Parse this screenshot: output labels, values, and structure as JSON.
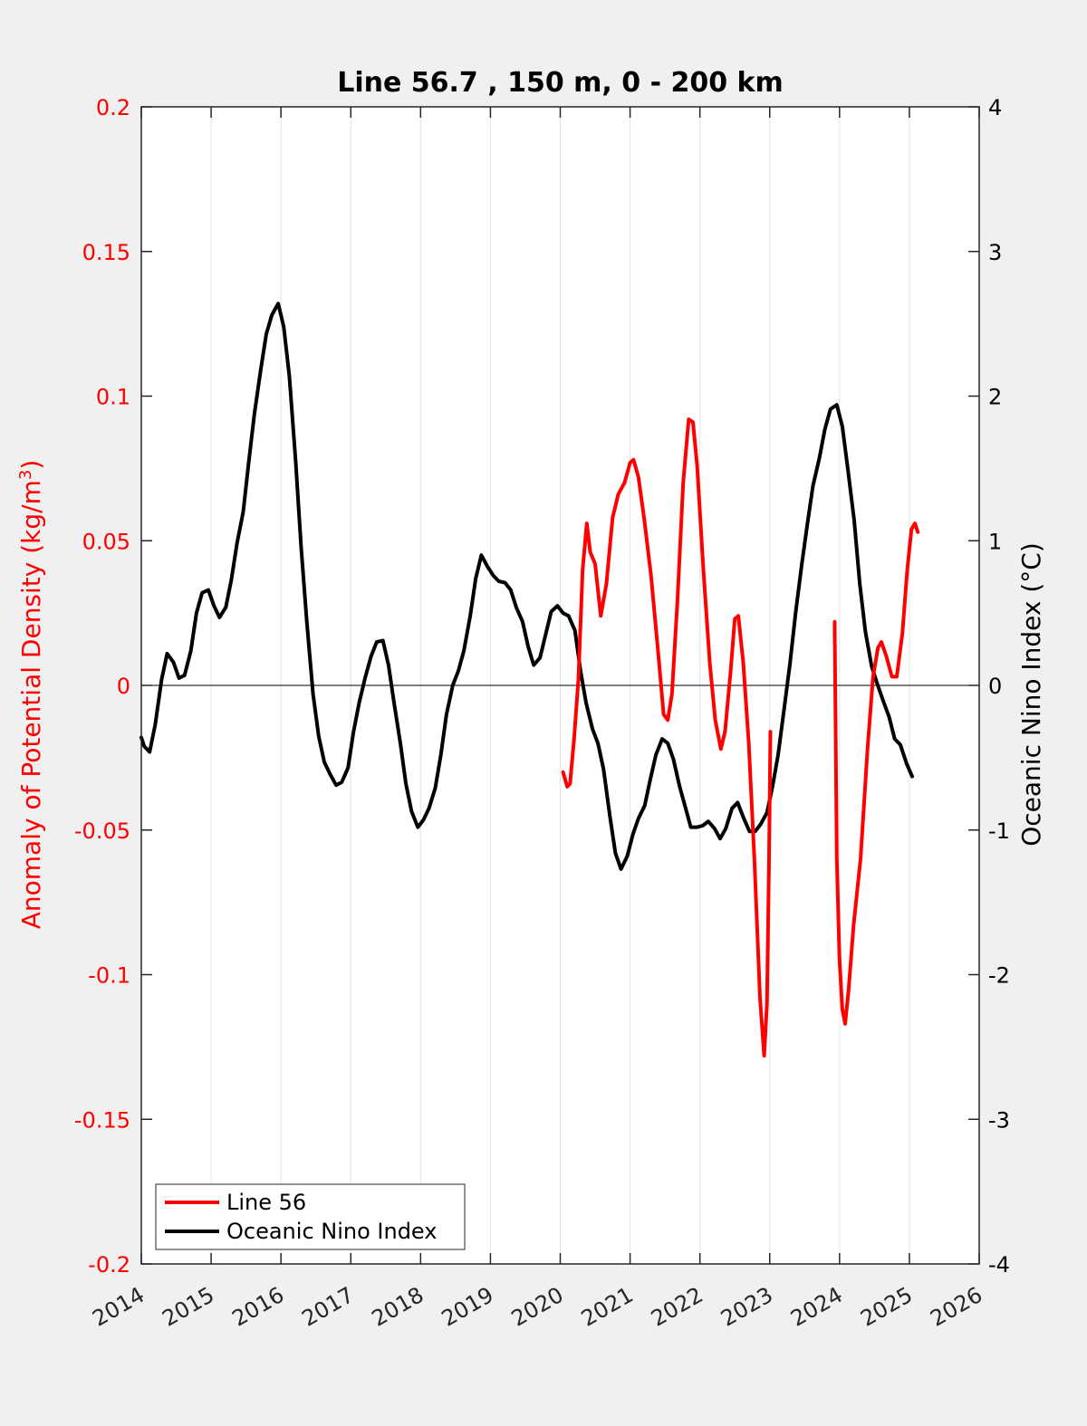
{
  "chart_data": {
    "type": "line",
    "title": "Line 56.7 , 150 m, 0 - 200 km",
    "x_ticks": [
      "2014",
      "2015",
      "2016",
      "2017",
      "2018",
      "2019",
      "2020",
      "2021",
      "2022",
      "2023",
      "2024",
      "2025",
      "2026"
    ],
    "xlim": [
      2014,
      2026
    ],
    "grid": "vertical",
    "legend_position": "bottom-left",
    "y_left": {
      "label_main": "Anomaly of Potential Density (kg/m",
      "label_sup": "3",
      "label_end": ")",
      "lim": [
        -0.2,
        0.2
      ],
      "ticks": [
        "-0.2",
        "-0.15",
        "-0.1",
        "-0.05",
        "0",
        "0.05",
        "0.1",
        "0.15",
        "0.2"
      ],
      "color": "#ff0000"
    },
    "y_right": {
      "label": "Oceanic Nino Index (°C)",
      "lim": [
        -4,
        4
      ],
      "ticks": [
        "-4",
        "-3",
        "-2",
        "-1",
        "0",
        "1",
        "2",
        "3",
        "4"
      ],
      "color": "#000000"
    },
    "series": [
      {
        "name": "Line 56",
        "axis": "left",
        "color": "#ff0000",
        "segments": [
          [
            [
              2020.04,
              -0.03
            ],
            [
              2020.1,
              -0.035
            ],
            [
              2020.14,
              -0.034
            ],
            [
              2020.2,
              -0.018
            ],
            [
              2020.26,
              0.002
            ],
            [
              2020.32,
              0.04
            ],
            [
              2020.38,
              0.056
            ],
            [
              2020.43,
              0.046
            ],
            [
              2020.5,
              0.042
            ],
            [
              2020.58,
              0.024
            ],
            [
              2020.66,
              0.035
            ],
            [
              2020.75,
              0.058
            ],
            [
              2020.83,
              0.066
            ],
            [
              2020.92,
              0.07
            ],
            [
              2021.0,
              0.077
            ],
            [
              2021.05,
              0.078
            ],
            [
              2021.12,
              0.072
            ],
            [
              2021.2,
              0.058
            ],
            [
              2021.3,
              0.038
            ],
            [
              2021.4,
              0.012
            ],
            [
              2021.48,
              -0.01
            ],
            [
              2021.54,
              -0.012
            ],
            [
              2021.6,
              -0.003
            ],
            [
              2021.68,
              0.03
            ],
            [
              2021.76,
              0.07
            ],
            [
              2021.84,
              0.092
            ],
            [
              2021.9,
              0.091
            ],
            [
              2021.96,
              0.076
            ],
            [
              2022.05,
              0.04
            ],
            [
              2022.14,
              0.008
            ],
            [
              2022.22,
              -0.012
            ],
            [
              2022.3,
              -0.022
            ],
            [
              2022.36,
              -0.016
            ],
            [
              2022.44,
              0.005
            ],
            [
              2022.5,
              0.023
            ],
            [
              2022.55,
              0.024
            ],
            [
              2022.62,
              0.008
            ],
            [
              2022.7,
              -0.02
            ],
            [
              2022.78,
              -0.06
            ],
            [
              2022.86,
              -0.108
            ],
            [
              2022.92,
              -0.128
            ],
            [
              2022.96,
              -0.11
            ],
            [
              2022.99,
              -0.06
            ],
            [
              2023.01,
              -0.016
            ]
          ],
          [
            [
              2023.93,
              0.022
            ],
            [
              2023.96,
              -0.06
            ],
            [
              2024.0,
              -0.095
            ],
            [
              2024.04,
              -0.112
            ],
            [
              2024.08,
              -0.117
            ],
            [
              2024.13,
              -0.105
            ],
            [
              2024.2,
              -0.083
            ],
            [
              2024.3,
              -0.06
            ],
            [
              2024.4,
              -0.022
            ],
            [
              2024.48,
              0.003
            ],
            [
              2024.55,
              0.013
            ],
            [
              2024.6,
              0.015
            ],
            [
              2024.67,
              0.01
            ],
            [
              2024.75,
              0.003
            ],
            [
              2024.82,
              0.003
            ],
            [
              2024.9,
              0.018
            ],
            [
              2024.97,
              0.04
            ],
            [
              2025.03,
              0.054
            ],
            [
              2025.08,
              0.056
            ],
            [
              2025.12,
              0.053
            ]
          ]
        ]
      },
      {
        "name": "Oceanic Nino Index",
        "axis": "right",
        "color": "#000000",
        "segments": [
          [
            [
              2014.0,
              -0.36
            ],
            [
              2014.04,
              -0.42
            ],
            [
              2014.12,
              -0.46
            ],
            [
              2014.2,
              -0.27
            ],
            [
              2014.29,
              0.04
            ],
            [
              2014.37,
              0.22
            ],
            [
              2014.46,
              0.16
            ],
            [
              2014.54,
              0.05
            ],
            [
              2014.62,
              0.07
            ],
            [
              2014.71,
              0.24
            ],
            [
              2014.79,
              0.5
            ],
            [
              2014.87,
              0.64
            ],
            [
              2014.96,
              0.66
            ],
            [
              2015.04,
              0.55
            ],
            [
              2015.12,
              0.47
            ],
            [
              2015.21,
              0.54
            ],
            [
              2015.29,
              0.73
            ],
            [
              2015.37,
              0.98
            ],
            [
              2015.46,
              1.2
            ],
            [
              2015.54,
              1.55
            ],
            [
              2015.62,
              1.88
            ],
            [
              2015.71,
              2.18
            ],
            [
              2015.79,
              2.43
            ],
            [
              2015.87,
              2.56
            ],
            [
              2015.96,
              2.64
            ],
            [
              2016.04,
              2.48
            ],
            [
              2016.12,
              2.14
            ],
            [
              2016.21,
              1.55
            ],
            [
              2016.29,
              0.95
            ],
            [
              2016.37,
              0.44
            ],
            [
              2016.46,
              -0.06
            ],
            [
              2016.54,
              -0.35
            ],
            [
              2016.62,
              -0.53
            ],
            [
              2016.71,
              -0.62
            ],
            [
              2016.79,
              -0.69
            ],
            [
              2016.87,
              -0.67
            ],
            [
              2016.96,
              -0.57
            ],
            [
              2017.04,
              -0.32
            ],
            [
              2017.12,
              -0.12
            ],
            [
              2017.21,
              0.06
            ],
            [
              2017.29,
              0.2
            ],
            [
              2017.37,
              0.3
            ],
            [
              2017.46,
              0.31
            ],
            [
              2017.54,
              0.14
            ],
            [
              2017.62,
              -0.12
            ],
            [
              2017.71,
              -0.4
            ],
            [
              2017.79,
              -0.68
            ],
            [
              2017.87,
              -0.87
            ],
            [
              2017.96,
              -0.98
            ],
            [
              2018.04,
              -0.93
            ],
            [
              2018.12,
              -0.85
            ],
            [
              2018.21,
              -0.71
            ],
            [
              2018.29,
              -0.48
            ],
            [
              2018.37,
              -0.2
            ],
            [
              2018.46,
              0.0
            ],
            [
              2018.54,
              0.1
            ],
            [
              2018.62,
              0.24
            ],
            [
              2018.71,
              0.48
            ],
            [
              2018.79,
              0.74
            ],
            [
              2018.87,
              0.9
            ],
            [
              2018.96,
              0.82
            ],
            [
              2019.04,
              0.76
            ],
            [
              2019.12,
              0.72
            ],
            [
              2019.21,
              0.71
            ],
            [
              2019.29,
              0.66
            ],
            [
              2019.37,
              0.54
            ],
            [
              2019.46,
              0.44
            ],
            [
              2019.54,
              0.27
            ],
            [
              2019.62,
              0.14
            ],
            [
              2019.71,
              0.19
            ],
            [
              2019.79,
              0.35
            ],
            [
              2019.87,
              0.51
            ],
            [
              2019.96,
              0.55
            ],
            [
              2020.04,
              0.5
            ],
            [
              2020.12,
              0.48
            ],
            [
              2020.21,
              0.38
            ],
            [
              2020.29,
              0.1
            ],
            [
              2020.37,
              -0.12
            ],
            [
              2020.46,
              -0.3
            ],
            [
              2020.54,
              -0.4
            ],
            [
              2020.62,
              -0.58
            ],
            [
              2020.71,
              -0.9
            ],
            [
              2020.79,
              -1.16
            ],
            [
              2020.87,
              -1.27
            ],
            [
              2020.96,
              -1.18
            ],
            [
              2021.04,
              -1.03
            ],
            [
              2021.12,
              -0.92
            ],
            [
              2021.21,
              -0.83
            ],
            [
              2021.29,
              -0.65
            ],
            [
              2021.37,
              -0.48
            ],
            [
              2021.46,
              -0.37
            ],
            [
              2021.54,
              -0.4
            ],
            [
              2021.62,
              -0.51
            ],
            [
              2021.71,
              -0.7
            ],
            [
              2021.79,
              -0.84
            ],
            [
              2021.87,
              -0.98
            ],
            [
              2021.96,
              -0.98
            ],
            [
              2022.04,
              -0.97
            ],
            [
              2022.12,
              -0.94
            ],
            [
              2022.21,
              -0.99
            ],
            [
              2022.29,
              -1.06
            ],
            [
              2022.37,
              -0.99
            ],
            [
              2022.46,
              -0.85
            ],
            [
              2022.54,
              -0.81
            ],
            [
              2022.62,
              -0.91
            ],
            [
              2022.71,
              -1.01
            ],
            [
              2022.79,
              -1.01
            ],
            [
              2022.87,
              -0.96
            ],
            [
              2022.96,
              -0.88
            ],
            [
              2023.04,
              -0.7
            ],
            [
              2023.12,
              -0.48
            ],
            [
              2023.21,
              -0.15
            ],
            [
              2023.29,
              0.15
            ],
            [
              2023.37,
              0.5
            ],
            [
              2023.46,
              0.84
            ],
            [
              2023.54,
              1.12
            ],
            [
              2023.62,
              1.38
            ],
            [
              2023.71,
              1.57
            ],
            [
              2023.79,
              1.77
            ],
            [
              2023.87,
              1.91
            ],
            [
              2023.96,
              1.94
            ],
            [
              2024.04,
              1.79
            ],
            [
              2024.12,
              1.49
            ],
            [
              2024.21,
              1.14
            ],
            [
              2024.29,
              0.7
            ],
            [
              2024.37,
              0.37
            ],
            [
              2024.46,
              0.13
            ],
            [
              2024.54,
              0.01
            ],
            [
              2024.62,
              -0.1
            ],
            [
              2024.71,
              -0.22
            ],
            [
              2024.79,
              -0.37
            ],
            [
              2024.87,
              -0.41
            ],
            [
              2024.96,
              -0.54
            ],
            [
              2025.04,
              -0.63
            ]
          ]
        ]
      }
    ]
  }
}
